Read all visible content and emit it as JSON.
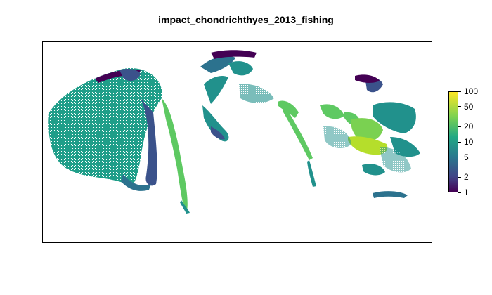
{
  "title": "impact_chondrichthyes_2013_fishing",
  "legend": {
    "scale": "log",
    "colormap": [
      "#440154",
      "#3b528b",
      "#21918c",
      "#5ec962",
      "#fde725"
    ],
    "range": [
      1,
      100
    ],
    "ticks": [
      {
        "label": "100",
        "value": 100
      },
      {
        "label": "50",
        "value": 50
      },
      {
        "label": "20",
        "value": 20
      },
      {
        "label": "10",
        "value": 10
      },
      {
        "label": "5",
        "value": 5
      },
      {
        "label": "2",
        "value": 2
      },
      {
        "label": "1",
        "value": 1
      }
    ]
  },
  "map": {
    "projection": "Mollweide-like oval, Pacific-centered",
    "ocean_background_color": "#ffffff",
    "land_color": "#ffffff"
  }
}
